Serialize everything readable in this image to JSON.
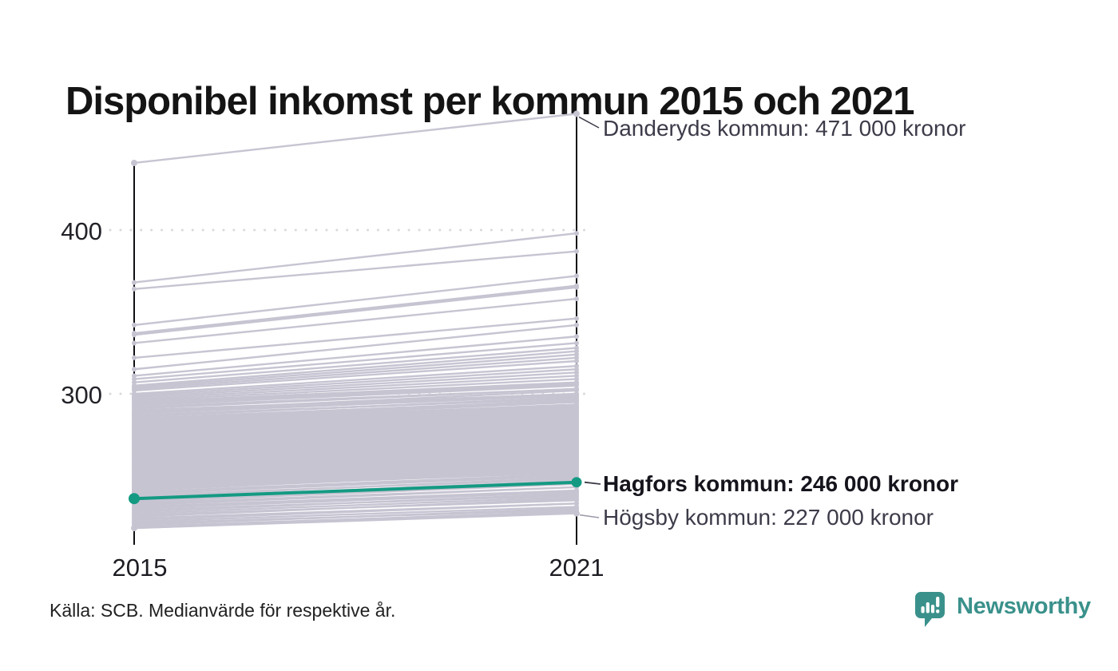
{
  "title": "Disponibel inkomst per kommun 2015 och 2021",
  "source_note": "Källa: SCB. Medianvärde för respektive år.",
  "branding": {
    "name": "Newsworthy"
  },
  "colors": {
    "series_gray": "#c7c4d2",
    "highlight_teal": "#149a83",
    "axis_black": "#101014",
    "grid_dot": "#dadade",
    "leader_gray": "#9b98a8",
    "leader_dark": "#3c3b49",
    "brand_teal": "#3a918b"
  },
  "chart_data": {
    "type": "line",
    "variant": "slope-chart",
    "x_labels": [
      "2015",
      "2021"
    ],
    "yticks": [
      "400",
      "300"
    ],
    "ylim": [
      208,
      475
    ],
    "grid": "dotted horizontal gridlines at 300 and 400",
    "legend_position": "none",
    "axis_scale_note": "axis in thousands of kronor; labels spell out full kronor values",
    "annotated_series": [
      {
        "name": "Danderyds kommun",
        "label": "Danderyds kommun: 471 000 kronor",
        "values": [
          441,
          471
        ],
        "highlighted": false
      },
      {
        "name": "Hagfors kommun",
        "label": "Hagfors kommun: 246 000 kronor",
        "values": [
          236,
          246
        ],
        "highlighted": true
      },
      {
        "name": "Högsby kommun",
        "label": "Högsby kommun: 227 000 kronor",
        "values": [
          218,
          227
        ],
        "highlighted": false
      }
    ],
    "background_series": [
      [
        368,
        398
      ],
      [
        364,
        387
      ],
      [
        342,
        372
      ],
      [
        337,
        366
      ],
      [
        336,
        365
      ],
      [
        331,
        358
      ],
      [
        322,
        346
      ],
      [
        315,
        342
      ],
      [
        311,
        335
      ],
      [
        309,
        331
      ],
      [
        307,
        328
      ],
      [
        305,
        326
      ],
      [
        304,
        324
      ],
      [
        303,
        322
      ],
      [
        302,
        320
      ],
      [
        300,
        317
      ],
      [
        299,
        315
      ],
      [
        298,
        313
      ],
      [
        297,
        311
      ],
      [
        296,
        309
      ],
      [
        295,
        307
      ],
      [
        294,
        306
      ],
      [
        293,
        305
      ],
      [
        292,
        303
      ],
      [
        291,
        303
      ],
      [
        290,
        300
      ],
      [
        289,
        302
      ],
      [
        288,
        299
      ],
      [
        287,
        297
      ],
      [
        286,
        298
      ],
      [
        285,
        296
      ],
      [
        284,
        295
      ],
      [
        283,
        295
      ],
      [
        282,
        292
      ],
      [
        281,
        293
      ],
      [
        280,
        291
      ],
      [
        279,
        290
      ],
      [
        278,
        288
      ],
      [
        277,
        289
      ],
      [
        276,
        287
      ],
      [
        275,
        286
      ],
      [
        274,
        284
      ],
      [
        273,
        285
      ],
      [
        272,
        283
      ],
      [
        271,
        282
      ],
      [
        270,
        280
      ],
      [
        269,
        281
      ],
      [
        268,
        279
      ],
      [
        267,
        278
      ],
      [
        266,
        276
      ],
      [
        265,
        277
      ],
      [
        264,
        275
      ],
      [
        263,
        274
      ],
      [
        262,
        272
      ],
      [
        261,
        273
      ],
      [
        260,
        271
      ],
      [
        259,
        270
      ],
      [
        258,
        268
      ],
      [
        257,
        269
      ],
      [
        256,
        267
      ],
      [
        255,
        266
      ],
      [
        254,
        264
      ],
      [
        253,
        265
      ],
      [
        252,
        263
      ],
      [
        251,
        262
      ],
      [
        250,
        260
      ],
      [
        249,
        261
      ],
      [
        248,
        259
      ],
      [
        247,
        258
      ],
      [
        246,
        256
      ],
      [
        245,
        257
      ],
      [
        244,
        255
      ],
      [
        243,
        254
      ],
      [
        242,
        252
      ],
      [
        241,
        253
      ],
      [
        240,
        251
      ],
      [
        239,
        250
      ],
      [
        238,
        248
      ],
      [
        237,
        249
      ],
      [
        236,
        247
      ],
      [
        235,
        245
      ],
      [
        234,
        245
      ],
      [
        233,
        243
      ],
      [
        232,
        243
      ],
      [
        231,
        241
      ],
      [
        230,
        240
      ],
      [
        229,
        238
      ],
      [
        228,
        239
      ],
      [
        227,
        237
      ],
      [
        226,
        235
      ],
      [
        225,
        236
      ],
      [
        224,
        233
      ],
      [
        223,
        233
      ],
      [
        222,
        231
      ],
      [
        288.5,
        299.5
      ],
      [
        286.5,
        297.5
      ],
      [
        284.5,
        295.5
      ],
      [
        282.5,
        293.5
      ],
      [
        280.5,
        291.5
      ],
      [
        278.5,
        289.5
      ],
      [
        276.5,
        287.5
      ],
      [
        274.5,
        285.5
      ],
      [
        272.5,
        283.5
      ],
      [
        270.5,
        281.5
      ],
      [
        268.5,
        279.5
      ],
      [
        266.5,
        277.5
      ],
      [
        264.5,
        275.5
      ],
      [
        262.5,
        273.5
      ],
      [
        260.5,
        271.5
      ],
      [
        258.5,
        269.5
      ],
      [
        256.5,
        267.5
      ],
      [
        254.5,
        265.5
      ],
      [
        252.5,
        263.5
      ],
      [
        250.5,
        261.5
      ],
      [
        248.5,
        259.5
      ],
      [
        246.5,
        257.5
      ],
      [
        244.5,
        255.5
      ],
      [
        242.5,
        253.5
      ],
      [
        221,
        229
      ],
      [
        220,
        230
      ],
      [
        219,
        228
      ],
      [
        218,
        228
      ]
    ]
  }
}
